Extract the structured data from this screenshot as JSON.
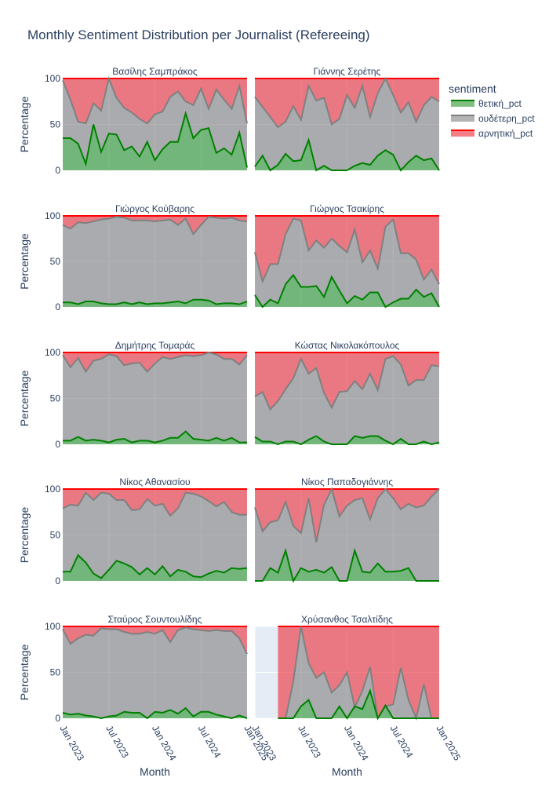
{
  "chart_data": {
    "type": "area",
    "title": "Monthly Sentiment Distribution per Journalist (Refereeing)",
    "xlabel": "Month",
    "ylabel": "Percentage",
    "ylim": [
      0,
      100
    ],
    "y_ticks": [
      "0",
      "50",
      "100"
    ],
    "x_ticks": [
      "Jan 2023",
      "Jul 2023",
      "Jan 2024",
      "Jul 2024",
      "Jan 2025"
    ],
    "months": [
      "2023-01",
      "2023-02",
      "2023-03",
      "2023-04",
      "2023-05",
      "2023-06",
      "2023-07",
      "2023-08",
      "2023-09",
      "2023-10",
      "2023-11",
      "2023-12",
      "2024-01",
      "2024-02",
      "2024-03",
      "2024-04",
      "2024-05",
      "2024-06",
      "2024-07",
      "2024-08",
      "2024-09",
      "2024-10",
      "2024-11",
      "2024-12",
      "2025-01"
    ],
    "legend": {
      "title": "sentiment",
      "position": "top-right",
      "items": [
        {
          "label": "θετική_pct",
          "color": "#008000"
        },
        {
          "label": "ουδέτερη_pct",
          "color": "#808080"
        },
        {
          "label": "αρνητική_pct",
          "color": "#ff0000"
        }
      ]
    },
    "panels": [
      {
        "name": "Βασίλης Σαμπράκος",
        "positive": [
          35,
          35,
          29,
          7,
          50,
          20,
          40,
          39,
          22,
          26,
          15,
          31,
          11,
          23,
          31,
          31,
          62,
          35,
          44,
          46,
          19,
          24,
          17,
          41,
          3
        ],
        "neutral_top": [
          98,
          77,
          53,
          51,
          73,
          65,
          100,
          79,
          68,
          63,
          56,
          51,
          61,
          64,
          80,
          86,
          75,
          71,
          89,
          67,
          88,
          77,
          67,
          92,
          51
        ]
      },
      {
        "name": "Γιάννης Σερέτης",
        "positive": [
          4,
          16,
          0,
          6,
          18,
          10,
          11,
          33,
          0,
          5,
          0,
          0,
          0,
          5,
          8,
          6,
          16,
          22,
          17,
          0,
          9,
          16,
          11,
          13,
          0
        ],
        "neutral_top": [
          80,
          69,
          58,
          47,
          53,
          70,
          55,
          92,
          76,
          79,
          50,
          56,
          82,
          68,
          92,
          58,
          84,
          100,
          82,
          63,
          74,
          53,
          71,
          80,
          75
        ]
      },
      {
        "name": "Γιώργος Κούβαρης",
        "positive": [
          5,
          5,
          3,
          6,
          6,
          4,
          3,
          3,
          5,
          3,
          5,
          3,
          4,
          4,
          5,
          6,
          4,
          8,
          8,
          7,
          3,
          4,
          4,
          3,
          6
        ],
        "neutral_top": [
          90,
          86,
          93,
          92,
          94,
          96,
          97,
          99,
          98,
          95,
          95,
          95,
          94,
          95,
          96,
          90,
          97,
          80,
          90,
          99,
          98,
          97,
          98,
          95,
          94
        ]
      },
      {
        "name": "Γιώργος Τσακίρης",
        "positive": [
          13,
          0,
          8,
          4,
          25,
          35,
          22,
          22,
          23,
          11,
          33,
          18,
          4,
          12,
          8,
          16,
          16,
          0,
          5,
          9,
          9,
          19,
          11,
          15,
          0
        ],
        "neutral_top": [
          60,
          28,
          47,
          47,
          80,
          97,
          95,
          62,
          73,
          65,
          75,
          67,
          60,
          85,
          49,
          62,
          42,
          88,
          96,
          59,
          59,
          52,
          30,
          41,
          25
        ]
      },
      {
        "name": "Δημήτρης Τομαράς",
        "positive": [
          4,
          4,
          8,
          4,
          5,
          4,
          2,
          5,
          6,
          2,
          4,
          4,
          2,
          4,
          7,
          7,
          14,
          6,
          5,
          4,
          7,
          4,
          7,
          2,
          2
        ],
        "neutral_top": [
          97,
          84,
          94,
          79,
          91,
          93,
          98,
          96,
          86,
          88,
          89,
          79,
          88,
          95,
          93,
          95,
          97,
          96,
          97,
          100,
          98,
          93,
          93,
          87,
          97
        ]
      },
      {
        "name": "Κώστας Νικολακόπουλος",
        "positive": [
          8,
          3,
          3,
          0,
          3,
          3,
          0,
          5,
          9,
          3,
          0,
          0,
          0,
          9,
          7,
          9,
          9,
          4,
          0,
          6,
          0,
          0,
          3,
          0,
          2
        ],
        "neutral_top": [
          52,
          57,
          38,
          47,
          60,
          72,
          93,
          77,
          83,
          56,
          40,
          57,
          58,
          69,
          60,
          77,
          59,
          93,
          96,
          87,
          64,
          70,
          70,
          86,
          85
        ]
      },
      {
        "name": "Νίκος Αθανασίου",
        "positive": [
          10,
          10,
          28,
          20,
          8,
          3,
          12,
          22,
          19,
          15,
          7,
          14,
          7,
          16,
          5,
          12,
          10,
          5,
          4,
          8,
          11,
          9,
          14,
          13,
          14
        ],
        "neutral_top": [
          79,
          83,
          82,
          96,
          88,
          96,
          95,
          88,
          88,
          77,
          78,
          89,
          82,
          84,
          71,
          79,
          96,
          95,
          92,
          87,
          81,
          86,
          75,
          72,
          72
        ]
      },
      {
        "name": "Νίκος Παπαδογιάννης",
        "positive": [
          0,
          0,
          14,
          9,
          33,
          0,
          14,
          10,
          12,
          9,
          15,
          0,
          0,
          33,
          10,
          9,
          19,
          10,
          10,
          11,
          14,
          0,
          0,
          0,
          0
        ],
        "neutral_top": [
          80,
          54,
          64,
          66,
          86,
          60,
          52,
          90,
          42,
          83,
          100,
          70,
          82,
          88,
          90,
          67,
          90,
          100,
          90,
          78,
          84,
          80,
          82,
          92,
          100
        ]
      },
      {
        "name": "Σταύρος Σουντουλίδης",
        "positive": [
          6,
          4,
          5,
          3,
          2,
          0,
          2,
          3,
          7,
          6,
          6,
          0,
          7,
          6,
          9,
          5,
          11,
          2,
          7,
          7,
          4,
          2,
          0,
          3,
          0
        ],
        "neutral_top": [
          97,
          81,
          87,
          91,
          90,
          98,
          97,
          97,
          94,
          92,
          92,
          94,
          92,
          96,
          83,
          96,
          99,
          97,
          96,
          95,
          96,
          95,
          95,
          87,
          70
        ]
      },
      {
        "name": "Χρύσανθος Τσαλτίδης",
        "start_index": 3,
        "positive": [
          0,
          0,
          0,
          13,
          20,
          0,
          0,
          0,
          13,
          0,
          13,
          10,
          30,
          0,
          14,
          0,
          0,
          0,
          0,
          0,
          0,
          0
        ],
        "neutral_top": [
          0,
          0,
          40,
          100,
          60,
          44,
          50,
          28,
          36,
          50,
          12,
          30,
          56,
          0,
          13,
          15,
          55,
          20,
          0,
          37,
          0,
          0
        ]
      }
    ]
  }
}
